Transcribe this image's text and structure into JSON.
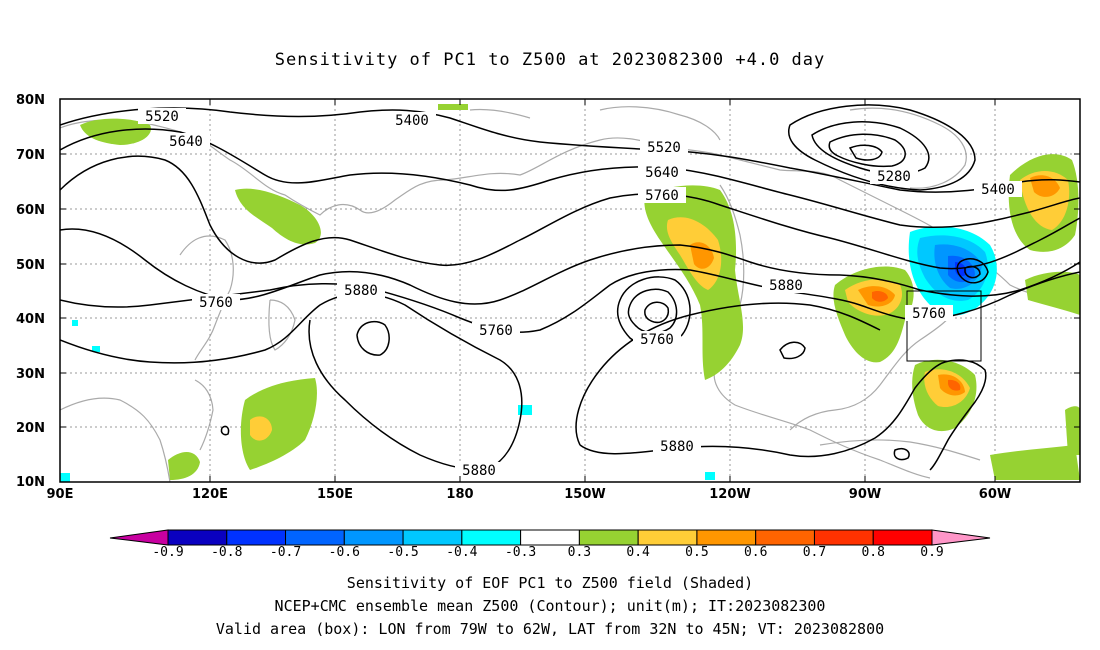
{
  "title": "Sensitivity of PC1 to Z500 at 2023082300 +4.0 day",
  "lat_labels": [
    "80N",
    "70N",
    "60N",
    "50N",
    "40N",
    "30N",
    "20N",
    "10N"
  ],
  "lon_labels": [
    "90E",
    "120E",
    "150E",
    "180",
    "150W",
    "120W",
    "90W",
    "60W"
  ],
  "contour_labels": [
    "5520",
    "5400",
    "5640",
    "5520",
    "5640",
    "5760",
    "5280",
    "5400",
    "5880",
    "5760",
    "5880",
    "5760",
    "5760",
    "5760",
    "5880",
    "5880"
  ],
  "colorbar_labels": [
    "-0.9",
    "-0.8",
    "-0.7",
    "-0.6",
    "-0.5",
    "-0.4",
    "-0.3",
    "0.3",
    "0.4",
    "0.5",
    "0.6",
    "0.7",
    "0.8",
    "0.9"
  ],
  "colorbar_colors": [
    "#c800a0",
    "#0a00c0",
    "#0032ff",
    "#0064ff",
    "#0096ff",
    "#00c8ff",
    "#00ffff",
    "#ffffff",
    "#96d232",
    "#ffcd37",
    "#ff9600",
    "#ff6400",
    "#ff3200",
    "#ff0000",
    "#ff96c8"
  ],
  "valid_box": {
    "lon_min": "79W",
    "lon_max": "62W",
    "lat_min": "32N",
    "lat_max": "45N"
  },
  "captions": {
    "line1": "Sensitivity of EOF PC1 to Z500 field (Shaded)",
    "line2": "NCEP+CMC ensemble mean Z500 (Contour); unit(m); IT:2023082300",
    "line3": "Valid area (box): LON from 79W to 62W, LAT from 32N to 45N; VT: 2023082800"
  }
}
